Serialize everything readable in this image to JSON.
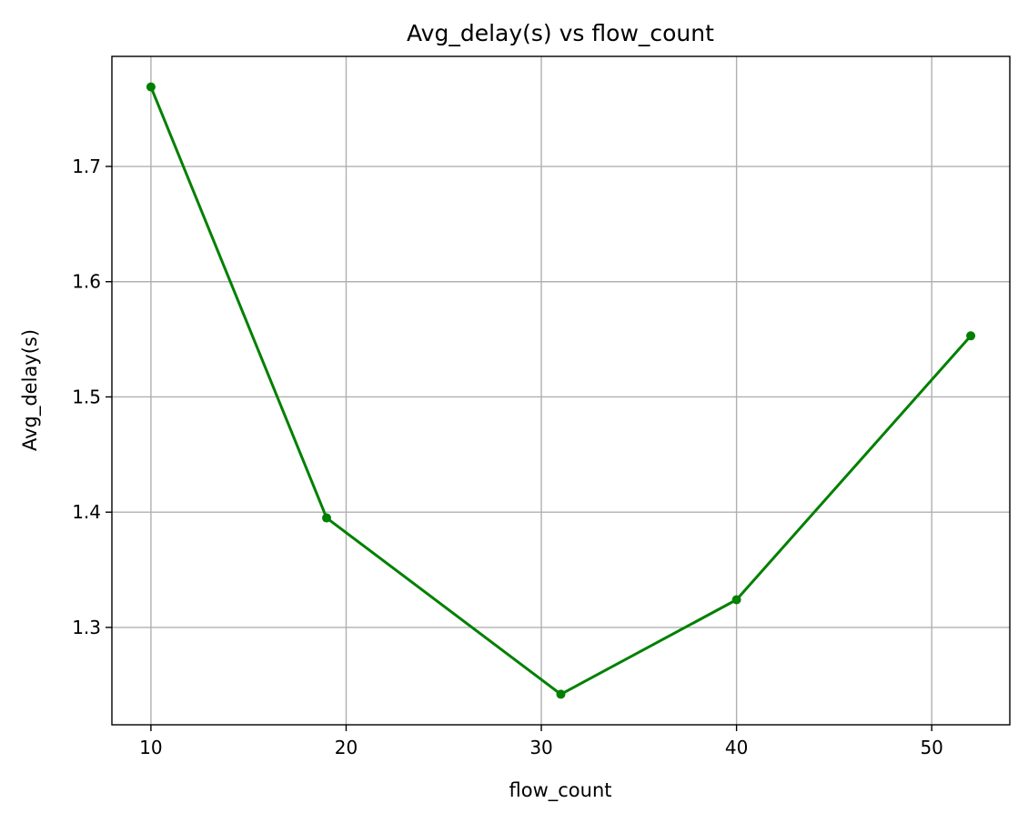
{
  "chart_data": {
    "type": "line",
    "title": "Avg_delay(s) vs flow_count",
    "xlabel": "flow_count",
    "ylabel": "Avg_delay(s)",
    "x": [
      10,
      19,
      31,
      40,
      52
    ],
    "series": [
      {
        "values": [
          1.769,
          1.395,
          1.242,
          1.324,
          1.553
        ]
      }
    ],
    "xlim": [
      8,
      54
    ],
    "ylim": [
      1.2155,
      1.7955
    ],
    "xticks": [
      10,
      20,
      30,
      40,
      50
    ],
    "yticks": [
      1.3,
      1.4,
      1.5,
      1.6,
      1.7
    ],
    "xtick_labels": [
      "10",
      "20",
      "30",
      "40",
      "50"
    ],
    "ytick_labels": [
      "1.3",
      "1.4",
      "1.5",
      "1.6",
      "1.7"
    ],
    "grid": true,
    "line_color": "#008000",
    "marker": "circle"
  }
}
